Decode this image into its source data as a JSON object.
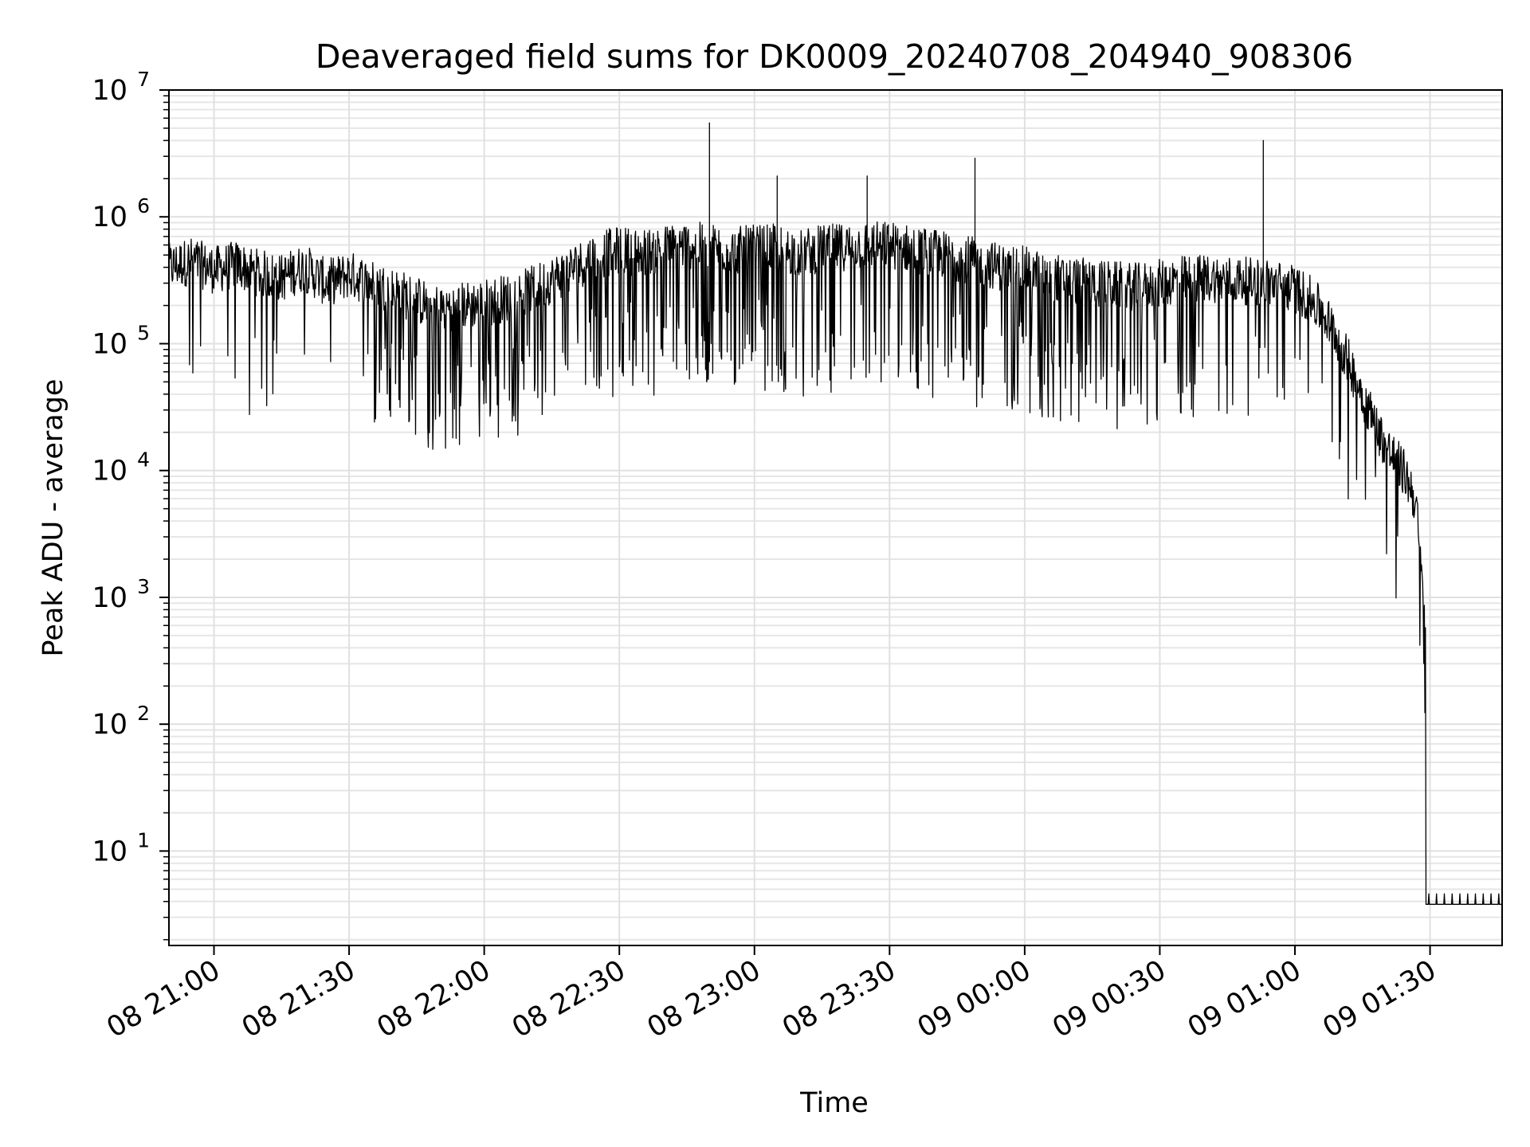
{
  "chart_data": {
    "type": "line",
    "title": "Deaveraged field sums for DK0009_20240708_204940_908306",
    "xlabel": "Time",
    "ylabel": "Peak ADU - average",
    "yscale": "log",
    "xlim": [
      "2024-07-08 20:50",
      "2024-07-09 01:46"
    ],
    "ylim": [
      1.8,
      10000000
    ],
    "grid": true,
    "line_color": "#000000",
    "x_ticks": [
      {
        "time": "2024-07-08 21:00",
        "label": "08 21:00"
      },
      {
        "time": "2024-07-08 21:30",
        "label": "08 21:30"
      },
      {
        "time": "2024-07-08 22:00",
        "label": "08 22:00"
      },
      {
        "time": "2024-07-08 22:30",
        "label": "08 22:30"
      },
      {
        "time": "2024-07-08 23:00",
        "label": "08 23:00"
      },
      {
        "time": "2024-07-08 23:30",
        "label": "08 23:30"
      },
      {
        "time": "2024-07-09 00:00",
        "label": "09 00:00"
      },
      {
        "time": "2024-07-09 00:30",
        "label": "09 00:30"
      },
      {
        "time": "2024-07-09 01:00",
        "label": "09 01:00"
      },
      {
        "time": "2024-07-09 01:30",
        "label": "09 01:30"
      }
    ],
    "y_ticks": [
      {
        "value": 10,
        "base": "10",
        "exp": "1"
      },
      {
        "value": 100,
        "base": "10",
        "exp": "2"
      },
      {
        "value": 1000,
        "base": "10",
        "exp": "3"
      },
      {
        "value": 10000,
        "base": "10",
        "exp": "4"
      },
      {
        "value": 100000,
        "base": "10",
        "exp": "5"
      },
      {
        "value": 1000000,
        "base": "10",
        "exp": "6"
      },
      {
        "value": 10000000,
        "base": "10",
        "exp": "7"
      }
    ],
    "series": [
      {
        "x": [
          "2024-07-08 20:50",
          "2024-07-08 20:55",
          "2024-07-08 21:00",
          "2024-07-08 21:05",
          "2024-07-08 21:10",
          "2024-07-08 21:15",
          "2024-07-08 21:20",
          "2024-07-08 21:25",
          "2024-07-08 21:30",
          "2024-07-08 21:35",
          "2024-07-08 21:40",
          "2024-07-08 21:45",
          "2024-07-08 21:50",
          "2024-07-08 21:55",
          "2024-07-08 22:00",
          "2024-07-08 22:05",
          "2024-07-08 22:10",
          "2024-07-08 22:15",
          "2024-07-08 22:20",
          "2024-07-08 22:25",
          "2024-07-08 22:30",
          "2024-07-08 22:35",
          "2024-07-08 22:40",
          "2024-07-08 22:45",
          "2024-07-08 22:50",
          "2024-07-08 22:55",
          "2024-07-08 23:00",
          "2024-07-08 23:05",
          "2024-07-08 23:10",
          "2024-07-08 23:15",
          "2024-07-08 23:20",
          "2024-07-08 23:25",
          "2024-07-08 23:30",
          "2024-07-08 23:35",
          "2024-07-08 23:40",
          "2024-07-08 23:45",
          "2024-07-08 23:50",
          "2024-07-08 23:55",
          "2024-07-09 00:00",
          "2024-07-09 00:05",
          "2024-07-09 00:10",
          "2024-07-09 00:15",
          "2024-07-09 00:20",
          "2024-07-09 00:25",
          "2024-07-09 00:30",
          "2024-07-09 00:35",
          "2024-07-09 00:40",
          "2024-07-09 00:45",
          "2024-07-09 00:50",
          "2024-07-09 00:55",
          "2024-07-09 01:00",
          "2024-07-09 01:03",
          "2024-07-09 01:06",
          "2024-07-09 01:09",
          "2024-07-09 01:12",
          "2024-07-09 01:15",
          "2024-07-09 01:18",
          "2024-07-09 01:21",
          "2024-07-09 01:24",
          "2024-07-09 01:26",
          "2024-07-09 01:27",
          "2024-07-09 01:28",
          "2024-07-09 01:29",
          "2024-07-09 01:29:30",
          "2024-07-09 01:30",
          "2024-07-09 01:35",
          "2024-07-09 01:40",
          "2024-07-09 01:46"
        ],
        "y": [
          400000,
          450000,
          380000,
          420000,
          360000,
          330000,
          400000,
          300000,
          350000,
          300000,
          260000,
          220000,
          190000,
          200000,
          210000,
          230000,
          260000,
          320000,
          400000,
          500000,
          550000,
          520000,
          560000,
          600000,
          580000,
          540000,
          560000,
          570000,
          520000,
          560000,
          580000,
          600000,
          600000,
          560000,
          520000,
          480000,
          440000,
          400000,
          380000,
          340000,
          320000,
          300000,
          290000,
          280000,
          300000,
          320000,
          330000,
          320000,
          310000,
          300000,
          270000,
          230000,
          180000,
          120000,
          70000,
          40000,
          22000,
          14000,
          10000,
          7000,
          5000,
          1500,
          600,
          200,
          4,
          4,
          4,
          4
        ]
      }
    ],
    "spikes": [
      {
        "time": "2024-07-08 22:50",
        "value": 5500000
      },
      {
        "time": "2024-07-08 23:05",
        "value": 2100000
      },
      {
        "time": "2024-07-08 23:25",
        "value": 2100000
      },
      {
        "time": "2024-07-08 23:49",
        "value": 2900000
      },
      {
        "time": "2024-07-09 00:53",
        "value": 4000000
      }
    ]
  }
}
